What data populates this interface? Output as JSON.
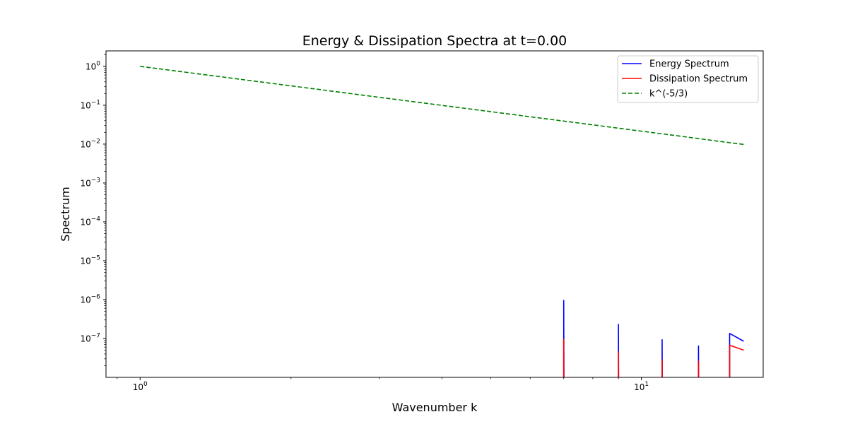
{
  "chart_data": {
    "type": "line",
    "title": "Energy & Dissipation Spectra at t=0.00",
    "xlabel": "Wavenumber k",
    "ylabel": "Spectrum",
    "xscale": "log",
    "yscale": "log",
    "xlim": [
      0.855,
      17.5
    ],
    "ylim": [
      1e-08,
      2.5
    ],
    "grid": false,
    "legend_position": "top-right",
    "x_major_ticks": [
      {
        "value": 1,
        "base": "10",
        "exp": "0"
      },
      {
        "value": 10,
        "base": "10",
        "exp": "1"
      }
    ],
    "y_major_ticks": [
      {
        "value": 1,
        "base": "10",
        "exp": "0"
      },
      {
        "value": 0.1,
        "base": "10",
        "exp": "−1"
      },
      {
        "value": 0.01,
        "base": "10",
        "exp": "−2"
      },
      {
        "value": 0.001,
        "base": "10",
        "exp": "−3"
      },
      {
        "value": 0.0001,
        "base": "10",
        "exp": "−4"
      },
      {
        "value": 1e-05,
        "base": "10",
        "exp": "−5"
      },
      {
        "value": 1e-06,
        "base": "10",
        "exp": "−6"
      },
      {
        "value": 1e-07,
        "base": "10",
        "exp": "−7"
      }
    ],
    "series": [
      {
        "name": "Energy Spectrum",
        "color": "#0000ff",
        "dash": "solid",
        "points": [
          [
            7,
            1e-09
          ],
          [
            7,
            9.5e-07
          ],
          [
            7.01,
            1e-09
          ],
          [
            9,
            1e-09
          ],
          [
            9,
            2.3e-07
          ],
          [
            9.01,
            1e-09
          ],
          [
            11,
            1e-09
          ],
          [
            11,
            9.3e-08
          ],
          [
            11.01,
            1e-09
          ],
          [
            13,
            1e-09
          ],
          [
            13,
            6.4e-08
          ],
          [
            13.01,
            1e-09
          ],
          [
            15,
            1e-09
          ],
          [
            15,
            1.35e-07
          ],
          [
            16,
            8.5e-08
          ]
        ]
      },
      {
        "name": "Dissipation Spectrum",
        "color": "#ff0000",
        "dash": "solid",
        "points": [
          [
            7,
            1e-09
          ],
          [
            7,
            9.5e-08
          ],
          [
            7.01,
            1e-09
          ],
          [
            9,
            1e-09
          ],
          [
            9,
            4.5e-08
          ],
          [
            9.01,
            1e-09
          ],
          [
            11,
            1e-09
          ],
          [
            11,
            2.8e-08
          ],
          [
            11.01,
            1e-09
          ],
          [
            13,
            1e-09
          ],
          [
            13,
            2.6e-08
          ],
          [
            13.01,
            1e-09
          ],
          [
            15,
            1e-09
          ],
          [
            15,
            6.7e-08
          ],
          [
            16,
            5e-08
          ]
        ]
      },
      {
        "name": "k^(-5/3)",
        "color": "#008000",
        "dash": "dashed",
        "points": [
          [
            1,
            1
          ],
          [
            2,
            0.315
          ],
          [
            3,
            0.16
          ],
          [
            4,
            0.0992
          ],
          [
            5,
            0.0684
          ],
          [
            6,
            0.0505
          ],
          [
            7,
            0.0391
          ],
          [
            8,
            0.03125
          ],
          [
            9,
            0.0257
          ],
          [
            10,
            0.0215
          ],
          [
            11,
            0.0184
          ],
          [
            12,
            0.0159
          ],
          [
            13,
            0.0139
          ],
          [
            14,
            0.0122
          ],
          [
            15,
            0.0109
          ],
          [
            16,
            0.00984
          ]
        ]
      }
    ]
  }
}
